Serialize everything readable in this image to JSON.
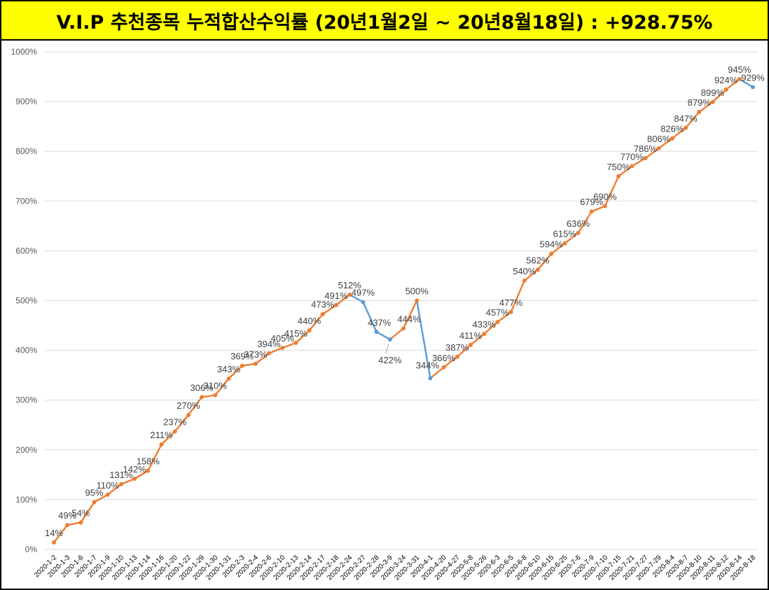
{
  "title": "V.I.P 추천종목 누적합산수익률 (20년1월2일 ~ 20년8월18일) : +928.75%",
  "colors": {
    "title_bg": "#ffff00",
    "line_up": "#ed7d31",
    "line_down": "#5b9bd5",
    "grid": "#d9d9d9",
    "label": "#404040",
    "tick": "#595959"
  },
  "chart_data": {
    "type": "line",
    "title": "V.I.P 추천종목 누적합산수익률 (20년1월2일 ~ 20년8월18일) : +928.75%",
    "xlabel": "",
    "ylabel": "",
    "y_unit": "%",
    "ylim": [
      0,
      1000
    ],
    "yticks": [
      0,
      100,
      200,
      300,
      400,
      500,
      600,
      700,
      800,
      900,
      1000
    ],
    "ytick_labels": [
      "0%",
      "100%",
      "200%",
      "300%",
      "400%",
      "500%",
      "600%",
      "700%",
      "800%",
      "900%",
      "1000%"
    ],
    "grid": true,
    "legend": "none",
    "categories": [
      "2020-1-2",
      "2020-1-3",
      "2020-1-6",
      "2020-1-7",
      "2020-1-9",
      "2020-1-10",
      "2020-1-13",
      "2020-1-14",
      "2020-1-16",
      "2020-1-20",
      "2020-1-22",
      "2020-1-29",
      "2020-1-30",
      "2020-1-31",
      "2020-2-3",
      "2020-2-4",
      "2020-2-6",
      "2020-2-10",
      "2020-2-13",
      "2020-2-14",
      "2020-2-17",
      "2020-2-18",
      "2020-2-24",
      "2020-2-27",
      "2020-2-28",
      "2020-3-9",
      "2020-3-24",
      "2020-3-31",
      "2020-4-1",
      "2020-4-20",
      "2020-4-27",
      "2020-5-8",
      "2020-5-26",
      "2020-6-3",
      "2020-6-5",
      "2020-6-8",
      "2020-6-10",
      "2020-6-15",
      "2020-6-25",
      "2020-7-6",
      "2020-7-9",
      "2020-7-10",
      "2020-7-15",
      "2020-7-21",
      "2020-7-27",
      "2020-7-29",
      "2020-8-4",
      "2020-8-7",
      "2020-8-10",
      "2020-8-11",
      "2020-8-12",
      "2020-8-14",
      "2020-8-18"
    ],
    "values": [
      14,
      49,
      54,
      95,
      110,
      131,
      142,
      158,
      211,
      237,
      270,
      306,
      310,
      343,
      369,
      373,
      394,
      405,
      415,
      440,
      473,
      491,
      512,
      497,
      437,
      422,
      444,
      500,
      344,
      366,
      387,
      411,
      433,
      457,
      477,
      540,
      562,
      594,
      615,
      636,
      679,
      690,
      750,
      770,
      786,
      806,
      826,
      847,
      879,
      899,
      924,
      945,
      929
    ],
    "data_labels": [
      "14%",
      "49%",
      "54%",
      "95%",
      "110%",
      "131%",
      "142%",
      "158%",
      "211%",
      "237%",
      "270%",
      "306%",
      "310%",
      "343%",
      "369%",
      "373%",
      "394%",
      "405%",
      "415%",
      "440%",
      "473%",
      "491%",
      "512%",
      "497%",
      "437%",
      "422%",
      "444%",
      "500%",
      "344%",
      "366%",
      "387%",
      "411%",
      "433%",
      "457%",
      "477%",
      "540%",
      "562%",
      "594%",
      "615%",
      "636%",
      "679%",
      "690%",
      "750%",
      "770%",
      "786%",
      "806%",
      "826%",
      "847%",
      "879%",
      "899%",
      "924%",
      "945%",
      "929%"
    ]
  }
}
